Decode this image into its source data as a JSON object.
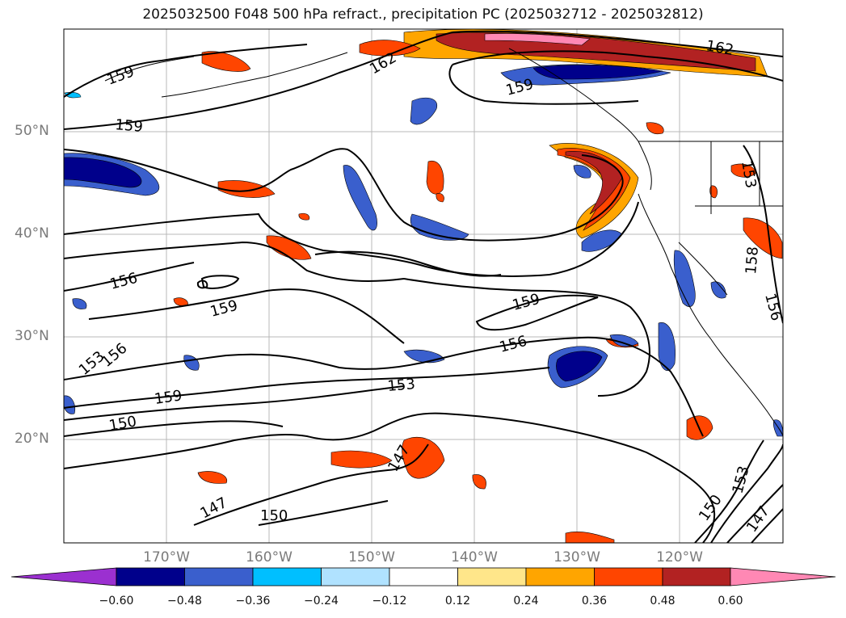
{
  "title": "2025032500 F048 500 hPa refract., precipitation PC (2025032712 - 2025032812)",
  "lat_labels": [
    "50°N",
    "40°N",
    "30°N",
    "20°N"
  ],
  "lon_labels": [
    "170°W",
    "160°W",
    "150°W",
    "140°W",
    "130°W",
    "120°W"
  ],
  "contour_labels": [
    "159",
    "162",
    "159",
    "162",
    "159",
    "156",
    "159",
    "153",
    "156",
    "159",
    "156",
    "153",
    "159",
    "150",
    "147",
    "147",
    "150",
    "153",
    "150",
    "147",
    "153",
    "156",
    "158"
  ],
  "colorbar": {
    "ticks": [
      "−0.60",
      "−0.48",
      "−0.36",
      "−0.24",
      "−0.12",
      "0.12",
      "0.24",
      "0.36",
      "0.48",
      "0.60"
    ],
    "colors": [
      "#9b30d0",
      "#00008b",
      "#3a5fcd",
      "#00bfff",
      "#b0e2ff",
      "#ffffff",
      "#ffe68a",
      "#ffa500",
      "#ff4500",
      "#b22222",
      "#ff88b4"
    ]
  }
}
